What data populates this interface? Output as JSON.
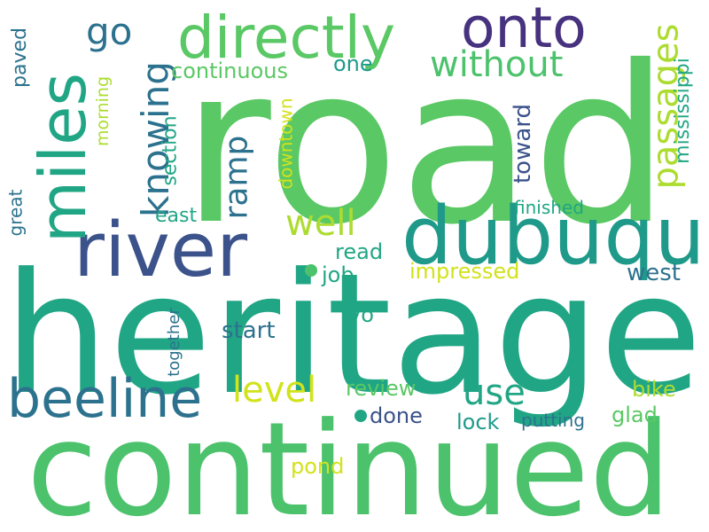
{
  "colors": {
    "background": "#ffffff",
    "bright_green": "#5ac864",
    "green": "#4cc26c",
    "teal": "#21a685",
    "teal_dark": "#1f9a8a",
    "blue": "#2c728e",
    "blue_dark": "#3b528b",
    "indigo": "#46327e",
    "purple": "#440154",
    "lime": "#addc30",
    "yellow": "#d2e21b"
  },
  "words": {
    "road": "road",
    "heritage": "heritage",
    "continued": "continued",
    "river": "river",
    "dubuque": "dubuque",
    "directly": "directly",
    "onto": "onto",
    "miles": "miles",
    "beeline": "beeline",
    "without": "without",
    "passages": "passages",
    "go": "go",
    "knowing": "knowing",
    "continuous": "continuous",
    "one": "one",
    "paved": "paved",
    "morning": "morning",
    "section": "section",
    "ramp": "ramp",
    "downtown": "downtown",
    "toward": "toward",
    "mississippi": "mississippi",
    "well": "well",
    "east": "east",
    "finished": "finished",
    "great": "great",
    "read": "read",
    "job": "job",
    "impressed": "impressed",
    "west": "west",
    "yo": "yo",
    "start": "start",
    "together": "together",
    "level": "level",
    "review": "review",
    "use": "use",
    "bike": "bike",
    "done": "done",
    "lock": "lock",
    "putting": "putting",
    "glad": "glad",
    "pond": "pond"
  }
}
